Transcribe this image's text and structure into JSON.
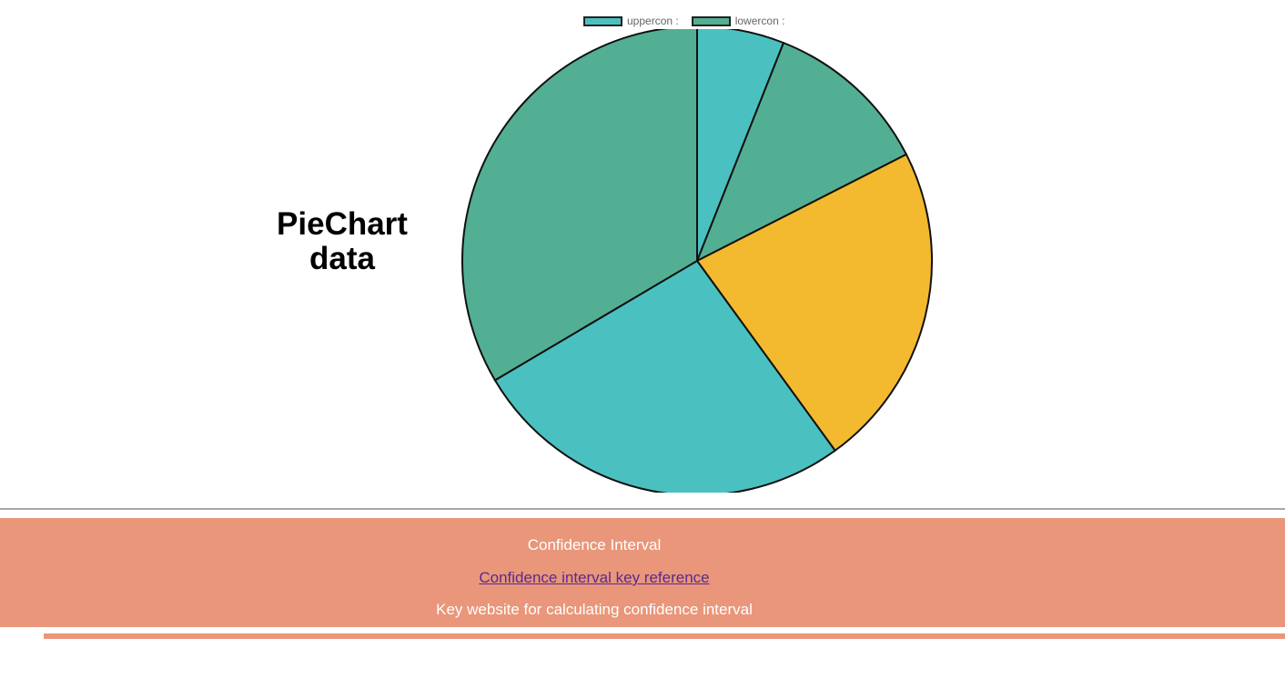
{
  "chart_data": {
    "type": "pie",
    "title": "PieChart data",
    "legend": [
      "uppercon :",
      "lowercon :"
    ],
    "legend_position": "top",
    "slices": [
      {
        "value": 6,
        "color": "#4bc0c0"
      },
      {
        "value": 11.5,
        "color": "#52af93"
      },
      {
        "value": 22.5,
        "color": "#f3b92f"
      },
      {
        "value": 26.5,
        "color": "#4bc0c0"
      },
      {
        "value": 33.5,
        "color": "#52af93"
      }
    ]
  },
  "legend_colors": [
    "#4bc0c0",
    "#52af93"
  ],
  "footer": {
    "heading": "Confidence Interval",
    "link_text": "Confidence interval key reference",
    "description": "Key website for calculating confidence interval"
  },
  "colors": {
    "footer_bg": "#e9967a",
    "divider": "#a4a8ac"
  }
}
